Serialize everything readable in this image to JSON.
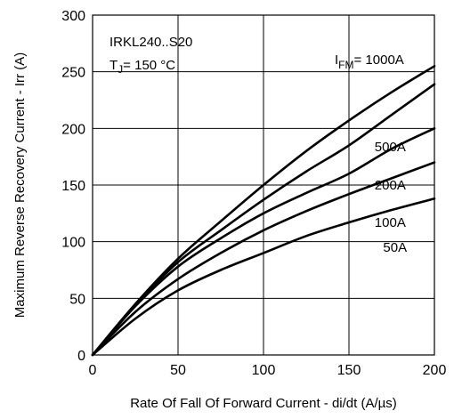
{
  "chart_data": {
    "type": "line",
    "xlabel": "Rate Of Fall Of Forward Current - di/dt (A/µs)",
    "ylabel": "Maximum Reverse Recovery Current - Irr (A)",
    "xlim": [
      0,
      200
    ],
    "ylim": [
      0,
      300
    ],
    "xticks": [
      "0",
      "50",
      "100",
      "150",
      "200"
    ],
    "yticks": [
      "0",
      "50",
      "100",
      "150",
      "200",
      "250",
      "300"
    ],
    "grid": true,
    "annotations": {
      "device": "IRKL240..S20",
      "tj_prefix": "T",
      "tj_sub": "J",
      "tj_suffix": "= 150 °C",
      "ifm_prefix": "I",
      "ifm_sub": "FM",
      "ifm_suffix": "= 1000A"
    },
    "series": [
      {
        "name": "1000A",
        "x": [
          0,
          25,
          50,
          75,
          100,
          125,
          150,
          175,
          200
        ],
        "y": [
          0,
          45,
          85,
          118,
          150,
          180,
          207,
          232,
          255
        ]
      },
      {
        "name": "500A",
        "x": [
          0,
          25,
          50,
          75,
          100,
          125,
          150,
          175,
          200
        ],
        "y": [
          0,
          44,
          82,
          110,
          137,
          162,
          185,
          212,
          239
        ]
      },
      {
        "name": "200A",
        "x": [
          0,
          25,
          50,
          75,
          100,
          125,
          150,
          175,
          200
        ],
        "y": [
          0,
          43,
          78,
          103,
          125,
          143,
          160,
          182,
          200
        ]
      },
      {
        "name": "100A",
        "x": [
          0,
          25,
          50,
          75,
          100,
          125,
          150,
          175,
          200
        ],
        "y": [
          0,
          38,
          67,
          90,
          110,
          127,
          142,
          156,
          170
        ]
      },
      {
        "name": "50A",
        "x": [
          0,
          25,
          50,
          75,
          100,
          125,
          150,
          175,
          200
        ],
        "y": [
          0,
          32,
          57,
          75,
          90,
          105,
          117,
          128,
          138
        ]
      }
    ]
  }
}
